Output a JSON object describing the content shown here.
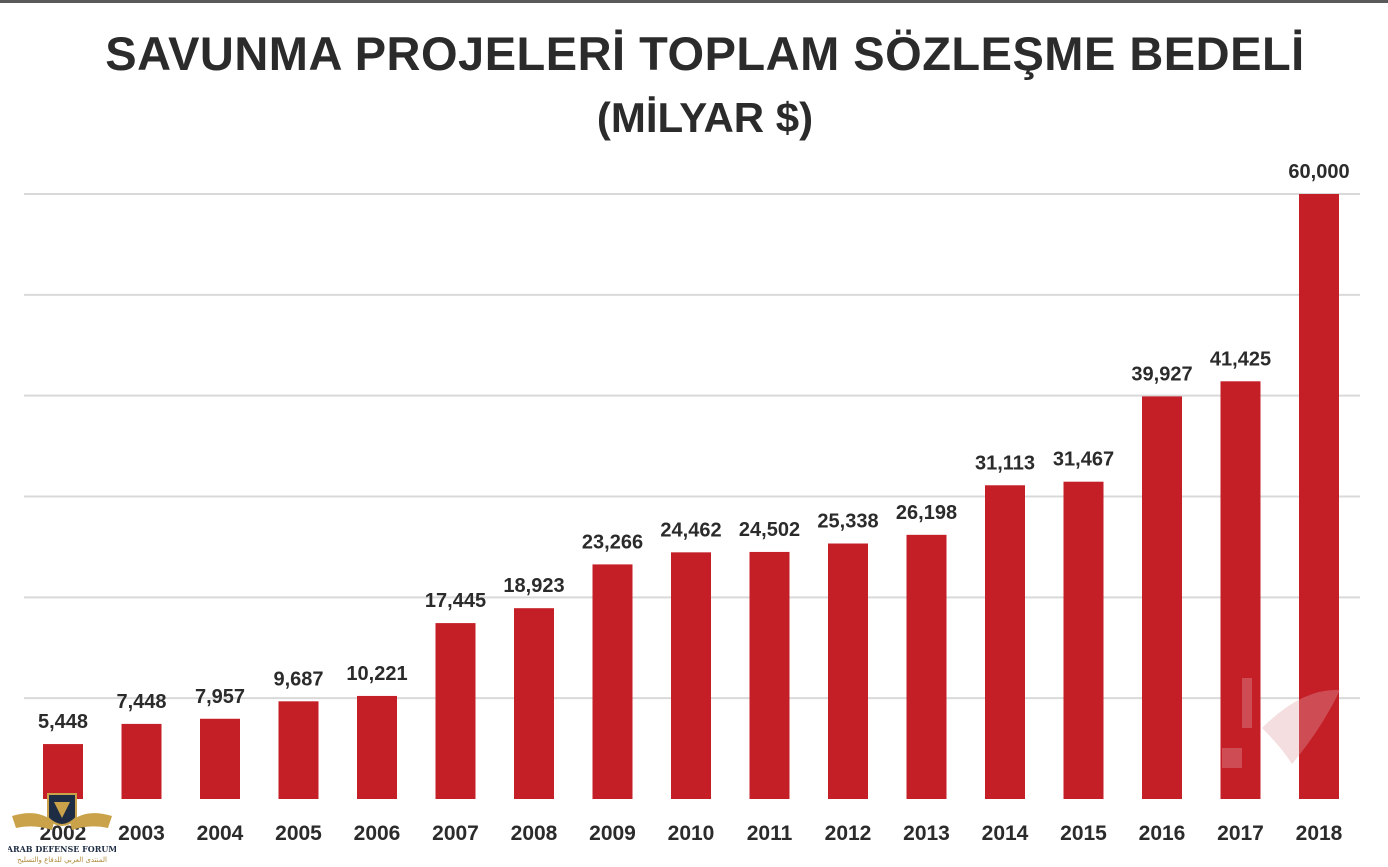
{
  "title": "SAVUNMA PROJELERİ TOPLAM SÖZLEŞME BEDELİ",
  "subtitle": "(MİLYAR $)",
  "colors": {
    "bar": "#c41e27",
    "grid": "#d9d9d9",
    "text": "#2b2b2b"
  },
  "chart_data": {
    "type": "bar",
    "title": "SAVUNMA PROJELERİ TOPLAM SÖZLEŞME BEDELİ",
    "subtitle": "(MİLYAR $)",
    "xlabel": "",
    "ylabel": "",
    "ylim": [
      0,
      60
    ],
    "grid": true,
    "categories": [
      "2002",
      "2003",
      "2004",
      "2005",
      "2006",
      "2007",
      "2008",
      "2009",
      "2010",
      "2011",
      "2012",
      "2013",
      "2014",
      "2015",
      "2016",
      "2017",
      "2018"
    ],
    "values": [
      5.448,
      7.448,
      7.957,
      9.687,
      10.221,
      17.445,
      18.923,
      23.266,
      24.462,
      24.502,
      25.338,
      26.198,
      31.113,
      31.467,
      39.927,
      41.425,
      60.0
    ],
    "data_labels": [
      "5,448",
      "7,448",
      "7,957",
      "9,687",
      "10,221",
      "17,445",
      "18,923",
      "23,266",
      "24,462",
      "24,502",
      "25,338",
      "26,198",
      "31,113",
      "31,467",
      "39,927",
      "41,425",
      "60,000"
    ]
  },
  "watermark": {
    "line1": "ARAB DEFENSE FORUM",
    "line2": "المنتدى العربي للدفاع والتسليح"
  }
}
